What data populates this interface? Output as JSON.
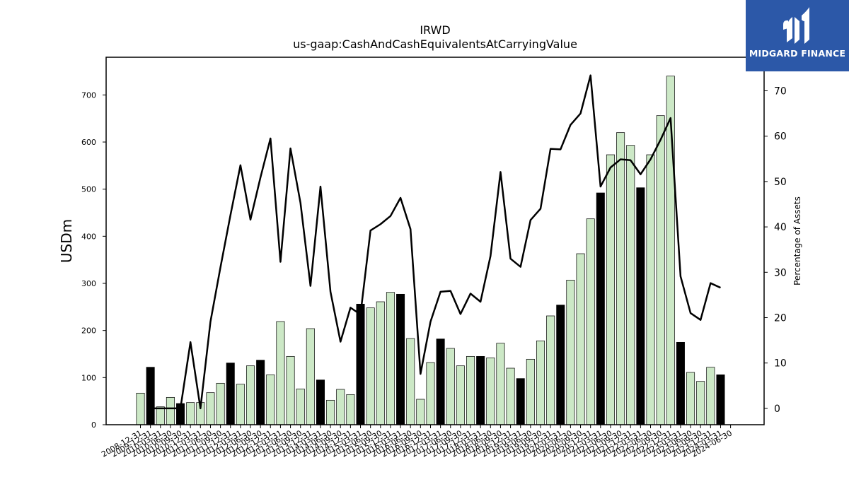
{
  "chart_data": {
    "type": "bar",
    "title": "IRWD",
    "subtitle": "us-gaap:CashAndCashEquivalentsAtCarryingValue",
    "ylabel": "USDm",
    "y2label": "Percentage of Assets",
    "ylim": [
      0,
      780
    ],
    "y2lim": [
      -3.6,
      77.4
    ],
    "yticks": [
      0,
      100,
      200,
      300,
      400,
      500,
      600,
      700
    ],
    "y2ticks": [
      0,
      10,
      20,
      30,
      40,
      50,
      60,
      70
    ],
    "colors": {
      "bar_light": "#cce8c6",
      "bar_dark": "#000000",
      "line": "#000000"
    },
    "categories": [
      "2008-12-31",
      "2009-12-31",
      "2010-03-31",
      "2010-06-30",
      "2010-09-30",
      "2010-12-31",
      "2011-03-31",
      "2011-06-30",
      "2011-09-30",
      "2011-12-31",
      "2012-03-31",
      "2012-06-30",
      "2012-09-30",
      "2012-12-31",
      "2013-03-31",
      "2013-06-30",
      "2013-09-30",
      "2013-12-31",
      "2014-03-31",
      "2014-06-30",
      "2014-09-30",
      "2014-12-31",
      "2015-03-31",
      "2015-06-30",
      "2015-09-30",
      "2015-12-31",
      "2016-03-31",
      "2016-06-30",
      "2016-09-30",
      "2016-12-31",
      "2017-03-31",
      "2017-06-30",
      "2017-09-30",
      "2017-12-31",
      "2018-03-31",
      "2018-06-30",
      "2018-09-30",
      "2018-12-31",
      "2019-03-31",
      "2019-06-30",
      "2019-09-30",
      "2019-12-31",
      "2020-03-31",
      "2020-06-30",
      "2020-09-30",
      "2020-12-31",
      "2021-03-31",
      "2021-06-30",
      "2021-09-30",
      "2021-12-31",
      "2022-03-31",
      "2022-06-30",
      "2022-09-30",
      "2022-12-31",
      "2023-03-31",
      "2023-06-30",
      "2023-09-30",
      "2023-12-31",
      "2024-03-31",
      "2024-06-30"
    ],
    "series": [
      {
        "name": "",
        "values": [
          67,
          122,
          38,
          58,
          45,
          47,
          47,
          68,
          88,
          131,
          86,
          125,
          137,
          106,
          219,
          145,
          76,
          204,
          95,
          52,
          75,
          64,
          256,
          248,
          261,
          281,
          277,
          183,
          54,
          132,
          182,
          162,
          125,
          145,
          145,
          142,
          173,
          120,
          98,
          139,
          178,
          231,
          254,
          307,
          363,
          437,
          492,
          573,
          620,
          593,
          503,
          573,
          656,
          740,
          175,
          111,
          92,
          122,
          106,
          null
        ]
      },
      {
        "name": "",
        "values": [
          null,
          0,
          0,
          0,
          0,
          14.6,
          0,
          19.1,
          31.1,
          42.6,
          53.6,
          41.6,
          50.9,
          59.5,
          32.3,
          57.3,
          45.3,
          27.0,
          48.9,
          25.7,
          14.7,
          22.2,
          20.7,
          39.2,
          40.6,
          42.4,
          46.4,
          39.5,
          7.6,
          19.1,
          25.7,
          25.9,
          20.8,
          25.3,
          23.5,
          33.6,
          52.1,
          33.0,
          31.2,
          41.5,
          44.0,
          57.2,
          57.1,
          62.5,
          65.0,
          73.4,
          48.9,
          53.1,
          54.9,
          54.7,
          51.6,
          54.9,
          59.2,
          64.0,
          29.1,
          21.0,
          19.5,
          27.6,
          26.6,
          null
        ]
      }
    ],
    "dark_bars": [
      "2009-12-31",
      "2010-09-30",
      "2011-12-31",
      "2012-09-30",
      "2014-03-31",
      "2015-03-31",
      "2016-03-31",
      "2017-03-31",
      "2018-03-31",
      "2019-03-31",
      "2020-03-31",
      "2021-03-31",
      "2022-03-31",
      "2023-03-31",
      "2024-03-31"
    ]
  },
  "logo": {
    "text": "MIDGARD FINANCE",
    "icon": "midgard-logo-icon"
  }
}
